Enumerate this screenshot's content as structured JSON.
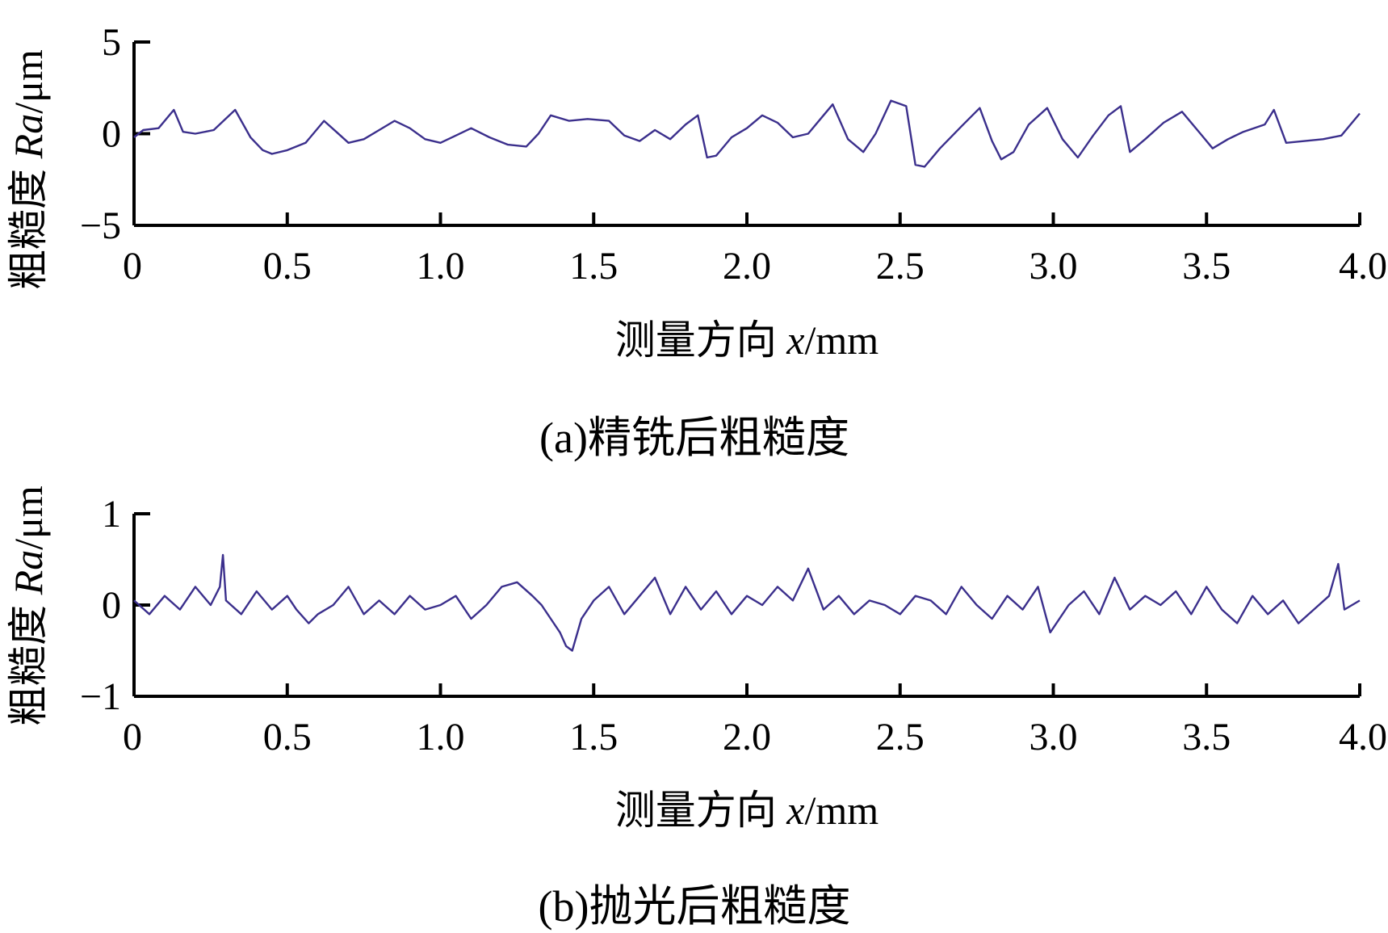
{
  "figure": {
    "colors": {
      "series": "#3b2f8c",
      "axis": "#000000"
    }
  },
  "chart_data": [
    {
      "type": "line",
      "panel": "a",
      "caption": "(a)精铣后粗糙度",
      "ylabel_prefix": "粗糙度 ",
      "ylabel_var": "Ra",
      "ylabel_unit": "/μm",
      "xlabel_prefix": "测量方向 ",
      "xlabel_var": "x",
      "xlabel_unit": "/mm",
      "xlim": [
        0,
        4.0
      ],
      "ylim": [
        -5,
        5
      ],
      "xticks": [
        0,
        0.5,
        1.0,
        1.5,
        2.0,
        2.5,
        3.0,
        3.5,
        4.0
      ],
      "xtick_labels": [
        "0",
        "0.5",
        "1.0",
        "1.5",
        "2.0",
        "2.5",
        "3.0",
        "3.5",
        "4.0"
      ],
      "yticks": [
        5,
        0,
        -5
      ],
      "ytick_labels": [
        "5",
        "0",
        "−5"
      ],
      "series": [
        {
          "name": "精铣后粗糙度",
          "x": [
            0,
            0.03,
            0.08,
            0.13,
            0.16,
            0.2,
            0.26,
            0.33,
            0.38,
            0.42,
            0.45,
            0.5,
            0.56,
            0.62,
            0.66,
            0.7,
            0.75,
            0.8,
            0.85,
            0.9,
            0.95,
            1.0,
            1.05,
            1.1,
            1.16,
            1.22,
            1.28,
            1.32,
            1.36,
            1.42,
            1.48,
            1.55,
            1.6,
            1.65,
            1.7,
            1.75,
            1.8,
            1.84,
            1.87,
            1.9,
            1.95,
            2.0,
            2.05,
            2.1,
            2.15,
            2.2,
            2.24,
            2.28,
            2.33,
            2.38,
            2.42,
            2.47,
            2.52,
            2.55,
            2.58,
            2.63,
            2.7,
            2.76,
            2.8,
            2.83,
            2.87,
            2.92,
            2.98,
            3.03,
            3.08,
            3.13,
            3.18,
            3.22,
            3.25,
            3.3,
            3.36,
            3.42,
            3.48,
            3.52,
            3.57,
            3.62,
            3.69,
            3.72,
            3.76,
            3.82,
            3.88,
            3.94,
            4.0
          ],
          "y": [
            -0.2,
            0.2,
            0.3,
            1.3,
            0.1,
            0.0,
            0.2,
            1.3,
            -0.2,
            -0.9,
            -1.1,
            -0.9,
            -0.5,
            0.7,
            0.1,
            -0.5,
            -0.3,
            0.2,
            0.7,
            0.3,
            -0.3,
            -0.5,
            -0.1,
            0.3,
            -0.2,
            -0.6,
            -0.7,
            0.0,
            1.0,
            0.7,
            0.8,
            0.7,
            -0.1,
            -0.4,
            0.2,
            -0.3,
            0.5,
            1.0,
            -1.3,
            -1.2,
            -0.2,
            0.3,
            1.0,
            0.6,
            -0.2,
            0.0,
            0.8,
            1.6,
            -0.3,
            -1.0,
            0.0,
            1.8,
            1.5,
            -1.7,
            -1.8,
            -0.8,
            0.4,
            1.4,
            -0.4,
            -1.4,
            -1.0,
            0.5,
            1.4,
            -0.3,
            -1.3,
            -0.1,
            1.0,
            1.5,
            -1.0,
            -0.3,
            0.6,
            1.2,
            0.0,
            -0.8,
            -0.3,
            0.1,
            0.5,
            1.3,
            -0.5,
            -0.4,
            -0.3,
            -0.1,
            1.1
          ]
        }
      ]
    },
    {
      "type": "line",
      "panel": "b",
      "caption": "(b)抛光后粗糙度",
      "ylabel_prefix": "粗糙度 ",
      "ylabel_var": "Ra",
      "ylabel_unit": "/μm",
      "xlabel_prefix": "测量方向 ",
      "xlabel_var": "x",
      "xlabel_unit": "/mm",
      "xlim": [
        0,
        4.0
      ],
      "ylim": [
        -1,
        1
      ],
      "xticks": [
        0,
        0.5,
        1.0,
        1.5,
        2.0,
        2.5,
        3.0,
        3.5,
        4.0
      ],
      "xtick_labels": [
        "0",
        "0.5",
        "1.0",
        "1.5",
        "2.0",
        "2.5",
        "3.0",
        "3.5",
        "4.0"
      ],
      "yticks": [
        1,
        0,
        -1
      ],
      "ytick_labels": [
        "1",
        "0",
        "−1"
      ],
      "series": [
        {
          "name": "抛光后粗糙度",
          "x": [
            0,
            0.05,
            0.1,
            0.15,
            0.2,
            0.25,
            0.28,
            0.29,
            0.3,
            0.35,
            0.4,
            0.45,
            0.5,
            0.53,
            0.57,
            0.6,
            0.65,
            0.7,
            0.75,
            0.8,
            0.85,
            0.9,
            0.95,
            1.0,
            1.05,
            1.1,
            1.15,
            1.2,
            1.25,
            1.3,
            1.33,
            1.36,
            1.39,
            1.41,
            1.43,
            1.46,
            1.5,
            1.55,
            1.6,
            1.65,
            1.7,
            1.75,
            1.8,
            1.85,
            1.9,
            1.95,
            2.0,
            2.05,
            2.1,
            2.15,
            2.2,
            2.25,
            2.3,
            2.35,
            2.4,
            2.45,
            2.5,
            2.55,
            2.6,
            2.65,
            2.7,
            2.75,
            2.8,
            2.85,
            2.9,
            2.95,
            2.99,
            3.05,
            3.1,
            3.15,
            3.2,
            3.25,
            3.3,
            3.35,
            3.4,
            3.45,
            3.5,
            3.55,
            3.6,
            3.65,
            3.7,
            3.75,
            3.8,
            3.85,
            3.9,
            3.93,
            3.95,
            4.0
          ],
          "y": [
            0.05,
            -0.1,
            0.1,
            -0.05,
            0.2,
            0.0,
            0.2,
            0.55,
            0.05,
            -0.1,
            0.15,
            -0.05,
            0.1,
            -0.05,
            -0.2,
            -0.1,
            0.0,
            0.2,
            -0.1,
            0.05,
            -0.1,
            0.1,
            -0.05,
            0.0,
            0.1,
            -0.15,
            0.0,
            0.2,
            0.25,
            0.1,
            0.0,
            -0.15,
            -0.3,
            -0.45,
            -0.5,
            -0.15,
            0.05,
            0.2,
            -0.1,
            0.1,
            0.3,
            -0.1,
            0.2,
            -0.05,
            0.15,
            -0.1,
            0.1,
            0.0,
            0.2,
            0.05,
            0.4,
            -0.05,
            0.1,
            -0.1,
            0.05,
            0.0,
            -0.1,
            0.1,
            0.05,
            -0.1,
            0.2,
            0.0,
            -0.15,
            0.1,
            -0.05,
            0.2,
            -0.3,
            0.0,
            0.15,
            -0.1,
            0.3,
            -0.05,
            0.1,
            0.0,
            0.15,
            -0.1,
            0.2,
            -0.05,
            -0.2,
            0.1,
            -0.1,
            0.05,
            -0.2,
            -0.05,
            0.1,
            0.45,
            -0.05,
            0.05
          ]
        }
      ]
    }
  ]
}
